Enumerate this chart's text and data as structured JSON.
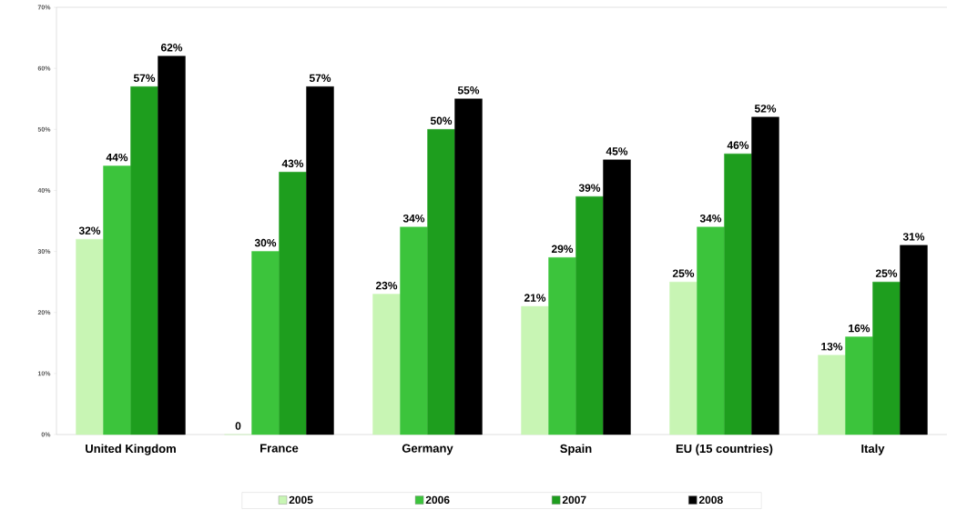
{
  "chart_data": {
    "type": "bar",
    "categories": [
      "United Kingdom",
      "France",
      "Germany",
      "Spain",
      "EU (15 countries)",
      "Italy"
    ],
    "series": [
      {
        "name": "2005",
        "color": "#c8f5b4",
        "values": [
          32,
          0,
          23,
          21,
          25,
          13
        ],
        "value_labels": [
          "32%",
          "0",
          "23%",
          "21%",
          "25%",
          "13%"
        ]
      },
      {
        "name": "2006",
        "color": "#3cc43c",
        "values": [
          44,
          30,
          34,
          29,
          34,
          16
        ],
        "value_labels": [
          "44%",
          "30%",
          "34%",
          "29%",
          "34%",
          "16%"
        ]
      },
      {
        "name": "2007",
        "color": "#1e9e1e",
        "values": [
          57,
          43,
          50,
          39,
          46,
          25
        ],
        "value_labels": [
          "57%",
          "43%",
          "50%",
          "39%",
          "46%",
          "25%"
        ]
      },
      {
        "name": "2008",
        "color": "#000000",
        "values": [
          62,
          57,
          55,
          45,
          52,
          31
        ],
        "value_labels": [
          "62%",
          "57%",
          "55%",
          "45%",
          "52%",
          "31%"
        ]
      }
    ],
    "ylim": [
      0,
      70
    ],
    "yticks": [
      {
        "value": 0,
        "label": "0%"
      },
      {
        "value": 10,
        "label": "10%"
      },
      {
        "value": 20,
        "label": "20%"
      },
      {
        "value": 30,
        "label": "30%"
      },
      {
        "value": 40,
        "label": "40%"
      },
      {
        "value": 50,
        "label": "50%"
      },
      {
        "value": 60,
        "label": "60%"
      },
      {
        "value": 70,
        "label": "70%"
      }
    ],
    "grid": false,
    "legend": "bottom"
  }
}
